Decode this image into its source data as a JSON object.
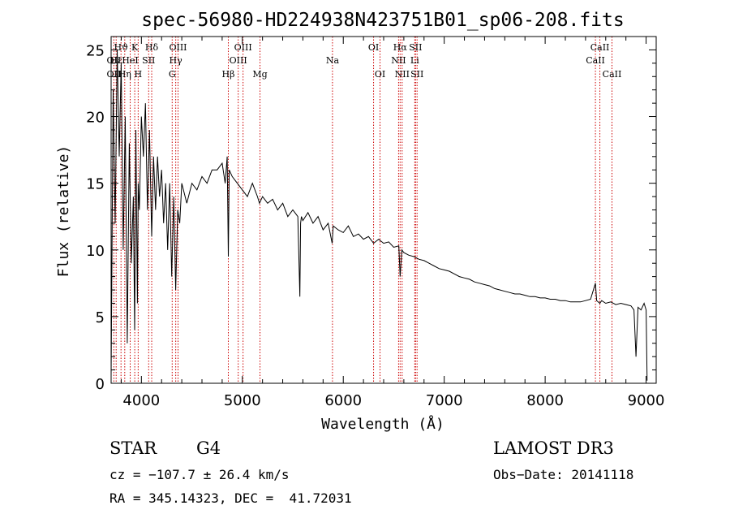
{
  "chart_data": {
    "type": "line",
    "title": "spec-56980-HD224938N423751B01_sp06-208.fits",
    "xlabel": "Wavelength (Å)",
    "ylabel": "Flux (relative)",
    "xlim": [
      3700,
      9100
    ],
    "ylim": [
      0,
      26
    ],
    "xticks": [
      4000,
      5000,
      6000,
      7000,
      8000,
      9000
    ],
    "yticks": [
      0,
      5,
      10,
      15,
      20,
      25
    ],
    "series": [
      {
        "name": "spectrum",
        "x": [
          3700,
          3720,
          3740,
          3760,
          3780,
          3800,
          3820,
          3840,
          3860,
          3880,
          3900,
          3920,
          3933,
          3945,
          3960,
          3968,
          3980,
          4000,
          4020,
          4040,
          4060,
          4080,
          4102,
          4120,
          4140,
          4160,
          4180,
          4200,
          4220,
          4240,
          4260,
          4280,
          4300,
          4320,
          4340,
          4360,
          4380,
          4400,
          4450,
          4500,
          4550,
          4600,
          4650,
          4700,
          4750,
          4800,
          4830,
          4850,
          4861,
          4870,
          4900,
          4950,
          5000,
          5050,
          5100,
          5150,
          5170,
          5200,
          5250,
          5300,
          5350,
          5400,
          5450,
          5500,
          5550,
          5570,
          5577,
          5585,
          5600,
          5650,
          5700,
          5750,
          5800,
          5850,
          5890,
          5900,
          5950,
          6000,
          6050,
          6100,
          6150,
          6200,
          6250,
          6300,
          6350,
          6400,
          6450,
          6500,
          6550,
          6563,
          6580,
          6600,
          6650,
          6700,
          6750,
          6800,
          6850,
          6900,
          6950,
          7000,
          7050,
          7100,
          7150,
          7200,
          7250,
          7300,
          7350,
          7400,
          7450,
          7500,
          7550,
          7600,
          7650,
          7700,
          7750,
          7800,
          7850,
          7900,
          7950,
          8000,
          8050,
          8100,
          8150,
          8200,
          8250,
          8300,
          8350,
          8400,
          8450,
          8498,
          8510,
          8542,
          8560,
          8600,
          8650,
          8700,
          8750,
          8800,
          8850,
          8880,
          8900,
          8920,
          8950,
          8980,
          9000,
          9010
        ],
        "values": [
          0.5,
          22,
          12,
          25,
          17,
          24,
          10,
          20,
          3,
          18,
          9,
          14,
          4,
          19,
          6,
          15,
          13,
          20,
          17,
          21,
          13,
          19,
          11,
          17,
          13,
          17,
          14,
          16,
          12,
          15,
          10,
          15,
          8,
          14,
          7,
          13,
          12,
          15,
          13.5,
          15,
          14.5,
          15.5,
          15,
          16,
          16,
          16.5,
          15,
          17,
          9.5,
          16,
          15.5,
          15,
          14.5,
          14,
          15,
          14,
          13.5,
          14,
          13.5,
          13.8,
          13,
          13.5,
          12.5,
          13,
          12.5,
          6.5,
          12,
          12.5,
          12.2,
          12.8,
          12,
          12.5,
          11.5,
          12,
          10.5,
          11.8,
          11.5,
          11.3,
          11.8,
          11,
          11.2,
          10.8,
          11,
          10.5,
          10.8,
          10.5,
          10.6,
          10.2,
          10.3,
          8,
          10,
          9.8,
          9.6,
          9.5,
          9.3,
          9.2,
          9,
          8.8,
          8.6,
          8.5,
          8.4,
          8.2,
          8,
          7.9,
          7.8,
          7.6,
          7.5,
          7.4,
          7.3,
          7.1,
          7,
          6.9,
          6.8,
          6.7,
          6.7,
          6.6,
          6.5,
          6.5,
          6.4,
          6.4,
          6.3,
          6.3,
          6.2,
          6.2,
          6.1,
          6.1,
          6.1,
          6.2,
          6.3,
          7.5,
          6.2,
          6.0,
          6.2,
          6.0,
          6.1,
          5.9,
          6.0,
          5.9,
          5.8,
          5.5,
          2.0,
          5.7,
          5.5,
          6.0,
          5.5,
          0.2
        ]
      }
    ],
    "spectral_lines": [
      {
        "label": "Hϑ",
        "x": 3798,
        "row": 1
      },
      {
        "label": "OII",
        "x": 3727,
        "row": 2
      },
      {
        "label": "Hε",
        "x": 3750,
        "row": 2
      },
      {
        "label": "OII",
        "x": 3727,
        "row": 3
      },
      {
        "label": "Hη",
        "x": 3835,
        "row": 3
      },
      {
        "label": "K",
        "x": 3934,
        "row": 1
      },
      {
        "label": "HeI",
        "x": 3889,
        "row": 2
      },
      {
        "label": "H",
        "x": 3968,
        "row": 3
      },
      {
        "label": "Hδ",
        "x": 4102,
        "row": 1
      },
      {
        "label": "SII",
        "x": 4072,
        "row": 2
      },
      {
        "label": "OIII",
        "x": 4363,
        "row": 1
      },
      {
        "label": "Hγ",
        "x": 4340,
        "row": 2
      },
      {
        "label": "G",
        "x": 4305,
        "row": 3
      },
      {
        "label": "OIII",
        "x": 5007,
        "row": 1
      },
      {
        "label": "OIII",
        "x": 4959,
        "row": 2
      },
      {
        "label": "Hβ",
        "x": 4861,
        "row": 3
      },
      {
        "label": "Mg",
        "x": 5175,
        "row": 3
      },
      {
        "label": "Na",
        "x": 5893,
        "row": 2
      },
      {
        "label": "OI",
        "x": 6300,
        "row": 1
      },
      {
        "label": "OI",
        "x": 6364,
        "row": 3
      },
      {
        "label": "Hα",
        "x": 6563,
        "row": 1
      },
      {
        "label": "SII",
        "x": 6716,
        "row": 1
      },
      {
        "label": "NII",
        "x": 6548,
        "row": 2
      },
      {
        "label": "Li",
        "x": 6708,
        "row": 2
      },
      {
        "label": "NII",
        "x": 6583,
        "row": 3
      },
      {
        "label": "SII",
        "x": 6731,
        "row": 3
      },
      {
        "label": "CaII",
        "x": 8542,
        "row": 1
      },
      {
        "label": "CaII",
        "x": 8498,
        "row": 2
      },
      {
        "label": "CaII",
        "x": 8662,
        "row": 3
      }
    ]
  },
  "info": {
    "object_class": "STAR",
    "subclass": "G4",
    "survey": "LAMOST DR3",
    "redshift": "cz = −107.7 ± 26.4 km/s",
    "obs_date": "Obs−Date: 20141118",
    "coords": "RA = 345.14323, DEC =  41.72031"
  },
  "colors": {
    "spectrum": "#000000",
    "line_marker": "#cc0000",
    "background": "#ffffff"
  }
}
